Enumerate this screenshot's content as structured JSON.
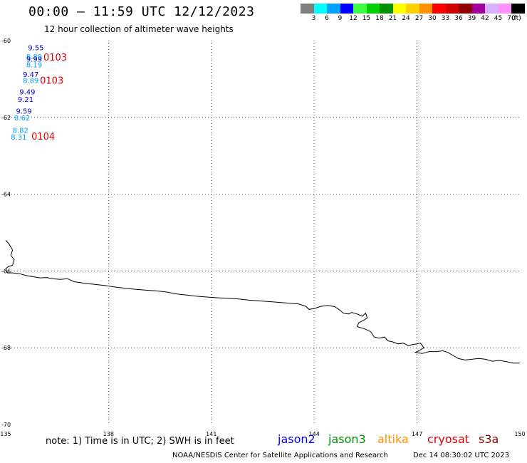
{
  "header": {
    "title": "00:00 – 11:59 UTC 12/12/2023",
    "subtitle": "12 hour collection of altimeter wave heights"
  },
  "legend": {
    "unit": "(ft)",
    "entries": [
      {
        "label": "3",
        "color": "#7f7f7f"
      },
      {
        "label": "6",
        "color": "#00ffff"
      },
      {
        "label": "9",
        "color": "#00a0ff"
      },
      {
        "label": "12",
        "color": "#0000ff"
      },
      {
        "label": "15",
        "color": "#40ff40"
      },
      {
        "label": "18",
        "color": "#00d000"
      },
      {
        "label": "21",
        "color": "#009000"
      },
      {
        "label": "24",
        "color": "#ffff00"
      },
      {
        "label": "27",
        "color": "#ffd000"
      },
      {
        "label": "30",
        "color": "#ff9000"
      },
      {
        "label": "33",
        "color": "#ff0000"
      },
      {
        "label": "36",
        "color": "#d00000"
      },
      {
        "label": "39",
        "color": "#900000"
      },
      {
        "label": "42",
        "color": "#a000a0"
      },
      {
        "label": "45",
        "color": "#d8b0ff"
      },
      {
        "label": "70",
        "color": "#ff90ff"
      },
      {
        "label": "",
        "color": "#000000"
      }
    ]
  },
  "map": {
    "lon_ticks": [
      {
        "label": "135",
        "value": 135
      },
      {
        "label": "138",
        "value": 138
      },
      {
        "label": "141",
        "value": 141
      },
      {
        "label": "144",
        "value": 144
      },
      {
        "label": "147",
        "value": 147
      },
      {
        "label": "150",
        "value": 150
      }
    ],
    "lat_ticks": [
      {
        "label": "-60",
        "value": -60
      },
      {
        "label": "-62",
        "value": -62
      },
      {
        "label": "-64",
        "value": -64
      },
      {
        "label": "-66",
        "value": -66
      },
      {
        "label": "-68",
        "value": -68
      },
      {
        "label": "-70",
        "value": -70
      }
    ],
    "measurements": [
      {
        "text": "9.55",
        "lon": 135.65,
        "lat": -60.25,
        "color": "#0000cc"
      },
      {
        "text": "8.89",
        "lon": 135.6,
        "lat": -60.48,
        "color": "#00a0ff"
      },
      {
        "text": "9.99",
        "lon": 135.6,
        "lat": -60.55,
        "color": "#0000cc"
      },
      {
        "text": "8.19",
        "lon": 135.6,
        "lat": -60.7,
        "color": "#00a0ff"
      },
      {
        "text": "9.47",
        "lon": 135.5,
        "lat": -60.95,
        "color": "#0000cc"
      },
      {
        "text": "8.89",
        "lon": 135.5,
        "lat": -61.1,
        "color": "#00a0ff"
      },
      {
        "text": "9.49",
        "lon": 135.4,
        "lat": -61.4,
        "color": "#0000cc"
      },
      {
        "text": "9.21",
        "lon": 135.35,
        "lat": -61.6,
        "color": "#0000cc"
      },
      {
        "text": "9.59",
        "lon": 135.3,
        "lat": -61.9,
        "color": "#0000cc"
      },
      {
        "text": "8.62",
        "lon": 135.25,
        "lat": -62.08,
        "color": "#00a0ff"
      },
      {
        "text": "8.82",
        "lon": 135.2,
        "lat": -62.4,
        "color": "#00a0ff"
      },
      {
        "text": "8.31",
        "lon": 135.15,
        "lat": -62.58,
        "color": "#00a0ff"
      }
    ],
    "pass_labels": [
      {
        "text": "0103",
        "lon": 136.1,
        "lat": -60.52,
        "color": "#e00000"
      },
      {
        "text": "0103",
        "lon": 136.0,
        "lat": -61.12,
        "color": "#e00000"
      },
      {
        "text": "0104",
        "lon": 135.75,
        "lat": -62.58,
        "color": "#e00000"
      }
    ],
    "coastline": [
      [
        135.0,
        -65.2
      ],
      [
        135.1,
        -65.3
      ],
      [
        135.2,
        -65.45
      ],
      [
        135.15,
        -65.6
      ],
      [
        135.25,
        -65.7
      ],
      [
        135.2,
        -65.85
      ],
      [
        135.05,
        -65.9
      ],
      [
        135.0,
        -65.95
      ],
      [
        135.05,
        -66.05
      ],
      [
        135.2,
        -66.05
      ],
      [
        135.4,
        -66.07
      ],
      [
        135.6,
        -66.12
      ],
      [
        135.8,
        -66.15
      ],
      [
        136.0,
        -66.18
      ],
      [
        136.2,
        -66.17
      ],
      [
        136.35,
        -66.2
      ],
      [
        136.6,
        -66.22
      ],
      [
        136.8,
        -66.2
      ],
      [
        137.0,
        -66.28
      ],
      [
        137.3,
        -66.32
      ],
      [
        137.6,
        -66.35
      ],
      [
        137.9,
        -66.38
      ],
      [
        138.2,
        -66.42
      ],
      [
        138.5,
        -66.45
      ],
      [
        138.8,
        -66.48
      ],
      [
        139.1,
        -66.5
      ],
      [
        139.4,
        -66.52
      ],
      [
        139.7,
        -66.55
      ],
      [
        140.0,
        -66.6
      ],
      [
        140.3,
        -66.63
      ],
      [
        140.6,
        -66.66
      ],
      [
        140.9,
        -66.68
      ],
      [
        141.2,
        -66.7
      ],
      [
        141.5,
        -66.71
      ],
      [
        141.8,
        -66.73
      ],
      [
        142.1,
        -66.76
      ],
      [
        142.4,
        -66.78
      ],
      [
        142.7,
        -66.8
      ],
      [
        143.0,
        -66.82
      ],
      [
        143.3,
        -66.84
      ],
      [
        143.55,
        -66.86
      ],
      [
        143.75,
        -66.92
      ],
      [
        143.85,
        -67.0
      ],
      [
        144.0,
        -66.98
      ],
      [
        144.2,
        -66.92
      ],
      [
        144.4,
        -66.9
      ],
      [
        144.6,
        -66.93
      ],
      [
        144.75,
        -67.02
      ],
      [
        144.85,
        -67.1
      ],
      [
        145.0,
        -67.12
      ],
      [
        145.1,
        -67.08
      ],
      [
        145.25,
        -67.12
      ],
      [
        145.4,
        -67.18
      ],
      [
        145.5,
        -67.1
      ],
      [
        145.55,
        -67.22
      ],
      [
        145.45,
        -67.28
      ],
      [
        145.3,
        -67.35
      ],
      [
        145.25,
        -67.45
      ],
      [
        145.45,
        -67.5
      ],
      [
        145.65,
        -67.58
      ],
      [
        145.75,
        -67.72
      ],
      [
        145.9,
        -67.75
      ],
      [
        146.05,
        -67.72
      ],
      [
        146.15,
        -67.82
      ],
      [
        146.3,
        -67.85
      ],
      [
        146.45,
        -67.9
      ],
      [
        146.6,
        -67.88
      ],
      [
        146.75,
        -67.95
      ],
      [
        146.85,
        -67.92
      ],
      [
        147.0,
        -67.9
      ],
      [
        147.1,
        -67.88
      ],
      [
        147.2,
        -68.0
      ],
      [
        147.05,
        -68.08
      ],
      [
        146.95,
        -68.12
      ],
      [
        147.15,
        -68.15
      ],
      [
        147.35,
        -68.1
      ],
      [
        147.55,
        -68.1
      ],
      [
        147.75,
        -68.08
      ],
      [
        147.9,
        -68.12
      ],
      [
        148.05,
        -68.2
      ],
      [
        148.2,
        -68.28
      ],
      [
        148.4,
        -68.32
      ],
      [
        148.6,
        -68.3
      ],
      [
        148.8,
        -68.28
      ],
      [
        149.0,
        -68.3
      ],
      [
        149.2,
        -68.35
      ],
      [
        149.4,
        -68.33
      ],
      [
        149.6,
        -68.36
      ],
      [
        149.8,
        -68.4
      ],
      [
        150.0,
        -68.4
      ]
    ]
  },
  "footer": {
    "note": "note: 1) Time is in UTC; 2) SWH is in feet",
    "satellites": [
      {
        "name": "jason2",
        "color": "#0000ff"
      },
      {
        "name": "jason3",
        "color": "#009000"
      },
      {
        "name": "altika",
        "color": "#ff9000"
      },
      {
        "name": "cryosat",
        "color": "#e00000"
      },
      {
        "name": "s3a",
        "color": "#900000"
      }
    ],
    "credit": "NOAA/NESDIS Center for Satellite Applications and Research",
    "timestamp": "Dec 14 08:30:02 UTC 2023"
  }
}
